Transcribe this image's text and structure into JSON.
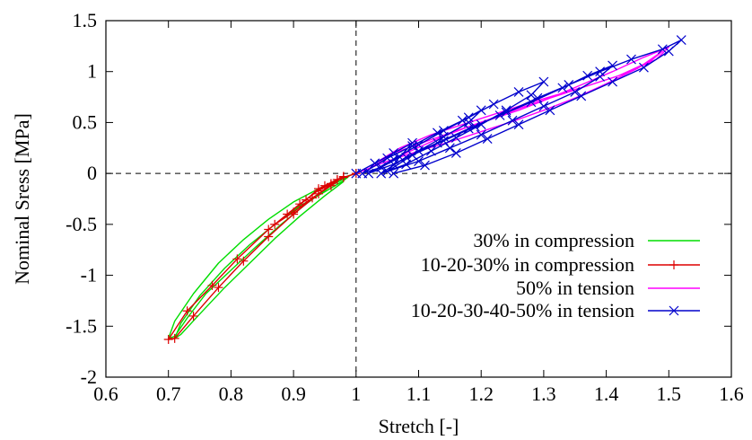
{
  "chart_data": {
    "type": "line",
    "title": "",
    "xlabel": "Stretch [-]",
    "ylabel": "Nominal Sress [MPa]",
    "xlim": [
      0.6,
      1.6
    ],
    "ylim": [
      -2,
      1.5
    ],
    "xticks": [
      "0.6",
      "0.7",
      "0.8",
      "0.9",
      "1",
      "1.1",
      "1.2",
      "1.3",
      "1.4",
      "1.5",
      "1.6"
    ],
    "yticks": [
      "-2",
      "-1.5",
      "-1",
      "-0.5",
      "0",
      "0.5",
      "1",
      "1.5"
    ],
    "reference_lines": {
      "x": 1,
      "y": 0,
      "style": "dashed"
    },
    "legend_position": "right",
    "series": [
      {
        "name": "30% in compression",
        "color": "#00dd00",
        "marker": "none",
        "x": [
          1.0,
          0.97,
          0.94,
          0.9,
          0.86,
          0.82,
          0.78,
          0.74,
          0.71,
          0.7,
          0.71,
          0.73,
          0.76,
          0.8,
          0.84,
          0.88,
          0.92,
          0.96,
          0.99,
          0.98,
          0.95,
          0.91,
          0.87,
          0.83,
          0.79,
          0.75,
          0.72,
          0.71,
          0.72,
          0.75,
          0.79,
          0.83,
          0.87,
          0.91,
          0.95,
          0.98
        ],
        "y": [
          0.0,
          -0.06,
          -0.15,
          -0.28,
          -0.45,
          -0.65,
          -0.88,
          -1.18,
          -1.45,
          -1.62,
          -1.6,
          -1.42,
          -1.18,
          -0.95,
          -0.72,
          -0.5,
          -0.3,
          -0.12,
          -0.02,
          -0.07,
          -0.18,
          -0.32,
          -0.5,
          -0.7,
          -0.93,
          -1.2,
          -1.47,
          -1.62,
          -1.58,
          -1.38,
          -1.12,
          -0.88,
          -0.64,
          -0.42,
          -0.22,
          -0.08
        ]
      },
      {
        "name": "10-20-30% in compression",
        "color": "#dd0000",
        "marker": "+",
        "x": [
          1.0,
          0.98,
          0.96,
          0.94,
          0.96,
          0.98,
          0.97,
          0.94,
          0.92,
          0.89,
          0.87,
          0.9,
          0.93,
          0.96,
          0.98,
          0.95,
          0.91,
          0.86,
          0.81,
          0.77,
          0.73,
          0.7,
          0.71,
          0.74,
          0.78,
          0.82,
          0.86,
          0.9,
          0.94,
          0.97
        ],
        "y": [
          0.0,
          -0.04,
          -0.1,
          -0.17,
          -0.1,
          -0.03,
          -0.06,
          -0.15,
          -0.26,
          -0.4,
          -0.5,
          -0.38,
          -0.24,
          -0.12,
          -0.03,
          -0.12,
          -0.3,
          -0.55,
          -0.84,
          -1.1,
          -1.35,
          -1.63,
          -1.62,
          -1.4,
          -1.12,
          -0.86,
          -0.62,
          -0.4,
          -0.2,
          -0.06
        ]
      },
      {
        "name": "50% in tension",
        "color": "#ff00ff",
        "marker": "none",
        "x": [
          1.0,
          1.05,
          1.1,
          1.15,
          1.2,
          1.25,
          1.3,
          1.35,
          1.4,
          1.45,
          1.49,
          1.47,
          1.42,
          1.37,
          1.32,
          1.27,
          1.22,
          1.17,
          1.12,
          1.07,
          1.03,
          1.02,
          1.06,
          1.11,
          1.16,
          1.21,
          1.26,
          1.31,
          1.36,
          1.41,
          1.46,
          1.5,
          1.48,
          1.43,
          1.38,
          1.33,
          1.28,
          1.23,
          1.18,
          1.13,
          1.08,
          1.04
        ],
        "y": [
          0.0,
          0.12,
          0.22,
          0.31,
          0.41,
          0.51,
          0.62,
          0.74,
          0.88,
          1.03,
          1.2,
          1.1,
          0.96,
          0.86,
          0.77,
          0.68,
          0.58,
          0.48,
          0.38,
          0.25,
          0.1,
          0.04,
          0.2,
          0.31,
          0.42,
          0.52,
          0.62,
          0.74,
          0.87,
          1.0,
          1.14,
          1.24,
          1.12,
          0.98,
          0.88,
          0.78,
          0.68,
          0.57,
          0.46,
          0.34,
          0.2,
          0.06
        ]
      },
      {
        "name": "10-20-30-40-50% in tension",
        "color": "#0000cc",
        "marker": "x",
        "x": [
          1.0,
          1.03,
          1.06,
          1.09,
          1.07,
          1.04,
          1.01,
          1.05,
          1.09,
          1.13,
          1.17,
          1.2,
          1.18,
          1.14,
          1.1,
          1.06,
          1.02,
          1.06,
          1.1,
          1.14,
          1.18,
          1.22,
          1.26,
          1.3,
          1.28,
          1.24,
          1.2,
          1.16,
          1.12,
          1.08,
          1.04,
          1.08,
          1.13,
          1.18,
          1.23,
          1.28,
          1.33,
          1.37,
          1.41,
          1.39,
          1.35,
          1.3,
          1.25,
          1.2,
          1.15,
          1.1,
          1.05,
          1.09,
          1.14,
          1.19,
          1.24,
          1.29,
          1.34,
          1.39,
          1.44,
          1.49,
          1.52,
          1.5,
          1.46,
          1.41,
          1.36,
          1.31,
          1.26,
          1.21,
          1.16,
          1.11,
          1.06
        ],
        "y": [
          0.0,
          0.1,
          0.2,
          0.3,
          0.16,
          0.06,
          0.0,
          0.15,
          0.27,
          0.4,
          0.52,
          0.62,
          0.5,
          0.36,
          0.22,
          0.09,
          0.0,
          0.14,
          0.28,
          0.42,
          0.55,
          0.68,
          0.8,
          0.9,
          0.77,
          0.62,
          0.48,
          0.35,
          0.22,
          0.09,
          0.0,
          0.16,
          0.3,
          0.44,
          0.57,
          0.7,
          0.84,
          0.96,
          1.06,
          0.95,
          0.8,
          0.66,
          0.52,
          0.38,
          0.25,
          0.12,
          0.02,
          0.18,
          0.32,
          0.46,
          0.6,
          0.74,
          0.87,
          1.0,
          1.12,
          1.22,
          1.31,
          1.2,
          1.04,
          0.9,
          0.76,
          0.62,
          0.48,
          0.34,
          0.2,
          0.08,
          0.0
        ]
      }
    ]
  }
}
